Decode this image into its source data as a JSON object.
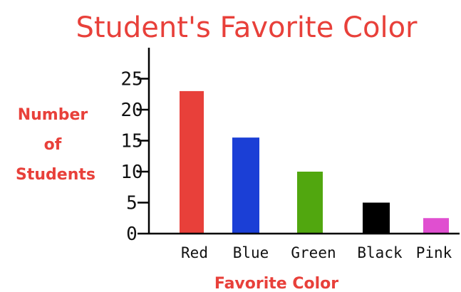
{
  "chart_data": {
    "type": "bar",
    "title": "Student's Favorite Color",
    "ylabel_lines": [
      "Number",
      "of",
      "Students"
    ],
    "xlabel": "Favorite Color",
    "categories": [
      "Red",
      "Blue",
      "Green",
      "Black",
      "Pink"
    ],
    "values": [
      23,
      15.5,
      10,
      5,
      2.5
    ],
    "colors": [
      "#e8403a",
      "#1b3fd6",
      "#51a70f",
      "#000000",
      "#e04fd0"
    ],
    "yticks": [
      "0",
      "5",
      "10",
      "15",
      "20",
      "25"
    ],
    "tick_values": [
      0,
      5,
      10,
      15,
      20,
      25
    ],
    "ylim": [
      0,
      30
    ],
    "grid": false,
    "legend": "none"
  }
}
